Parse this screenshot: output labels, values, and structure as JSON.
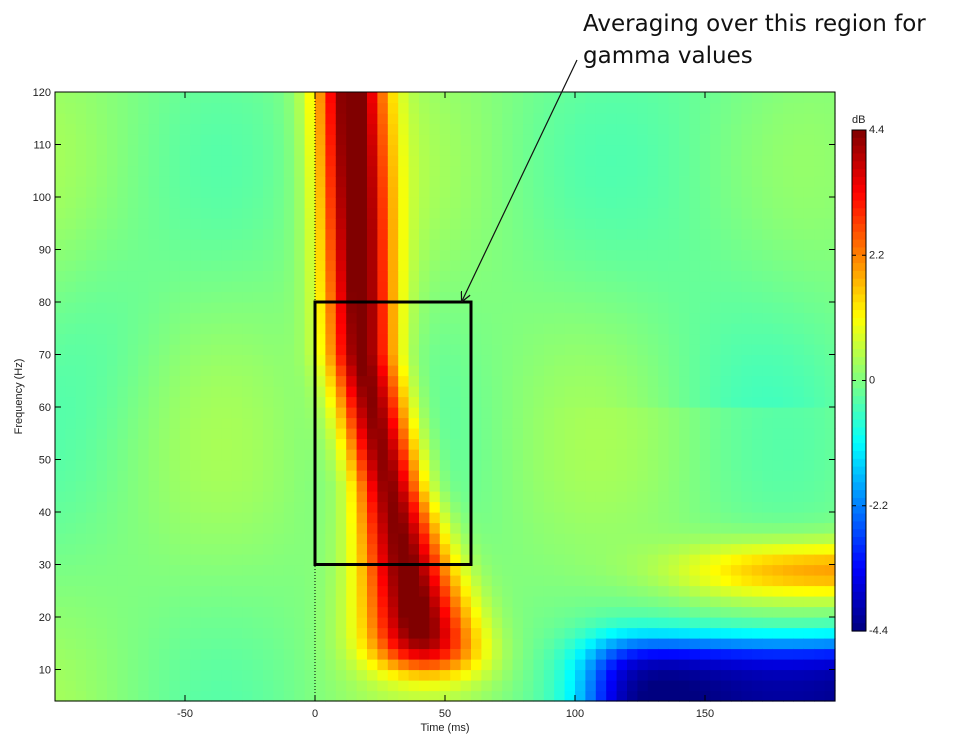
{
  "annotation": {
    "line1": "Averaging over this region for",
    "line2": "gamma values"
  },
  "chart_data": {
    "type": "heatmap",
    "xlabel": "Time (ms)",
    "ylabel": "Frequency (Hz)",
    "xlim": [
      -100,
      200
    ],
    "ylim": [
      4,
      120
    ],
    "xticks": [
      -50,
      0,
      50,
      100,
      150
    ],
    "yticks": [
      10,
      20,
      30,
      40,
      50,
      60,
      70,
      80,
      90,
      100,
      110,
      120
    ],
    "colorbar": {
      "unit": "dB",
      "min": -4.4,
      "max": 4.4,
      "ticks": [
        4.4,
        2.2,
        0,
        -2.2,
        -4.4
      ],
      "tick_labels": [
        "4.4",
        "2.2",
        "0",
        "-2.2",
        "-4.4"
      ]
    },
    "colormap": "jet",
    "event_line_time_ms": 0,
    "highlight_region": {
      "time_ms": [
        0,
        60
      ],
      "freq_hz": [
        30,
        80
      ]
    },
    "features": [
      {
        "name": "broadband response",
        "time_ms": [
          0,
          60
        ],
        "freq_hz": [
          10,
          120
        ],
        "peak_db": 4.4
      },
      {
        "name": "low-frequency decrease",
        "time_ms": [
          100,
          200
        ],
        "freq_hz": [
          4,
          18
        ],
        "min_db": -4.4
      },
      {
        "name": "beta increase",
        "time_ms": [
          140,
          200
        ],
        "freq_hz": [
          22,
          36
        ],
        "peak_db": 2.0
      }
    ]
  }
}
